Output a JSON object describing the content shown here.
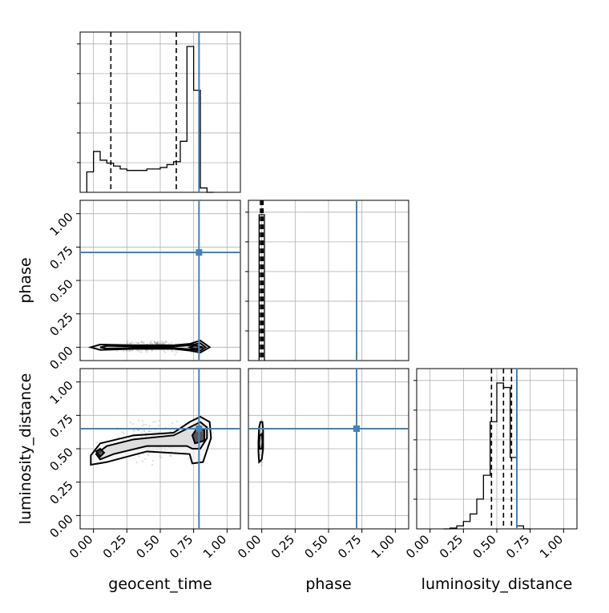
{
  "chart_data": {
    "type": "corner",
    "parameters": [
      "geocent_time",
      "phase",
      "luminosity_distance"
    ],
    "truths": [
      0.79,
      0.71,
      0.65
    ],
    "truth_color": "#4682b4",
    "range": [
      -0.1,
      1.1
    ],
    "tick_labels": [
      "0.00",
      "0.25",
      "0.50",
      "0.75",
      "1.00"
    ],
    "tick_values": [
      0.0,
      0.25,
      0.5,
      0.75,
      1.0
    ],
    "grid": true,
    "diagonal": [
      {
        "parameter": "geocent_time",
        "bin_edges": [
          -0.05,
          0.0,
          0.05,
          0.1,
          0.15,
          0.2,
          0.25,
          0.3,
          0.35,
          0.4,
          0.45,
          0.5,
          0.55,
          0.6,
          0.65,
          0.7,
          0.75,
          0.8,
          0.85,
          0.9
        ],
        "counts": [
          0.14,
          0.28,
          0.22,
          0.2,
          0.18,
          0.16,
          0.15,
          0.15,
          0.15,
          0.16,
          0.16,
          0.17,
          0.19,
          0.21,
          0.35,
          1.0,
          0.7,
          0.03,
          0.0
        ],
        "quantiles": [
          0.13,
          0.62,
          0.79
        ]
      },
      {
        "parameter": "phase",
        "bin_edges": [
          -0.02,
          0.0,
          0.02
        ],
        "counts": [
          1.0,
          1.0
        ],
        "quantiles": [
          -0.01,
          0.0,
          0.01
        ]
      },
      {
        "parameter": "luminosity_distance",
        "bin_edges": [
          0.1,
          0.15,
          0.2,
          0.25,
          0.3,
          0.35,
          0.4,
          0.45,
          0.5,
          0.55,
          0.6,
          0.65,
          0.7,
          0.75
        ],
        "counts": [
          0.0,
          0.005,
          0.02,
          0.05,
          0.1,
          0.2,
          0.36,
          0.72,
          0.98,
          0.95,
          0.48,
          0.02,
          0.0
        ],
        "quantiles": [
          0.46,
          0.55,
          0.61
        ]
      }
    ],
    "pairs": [
      {
        "x": "geocent_time",
        "y": "phase",
        "contours": [
          [
            [
              -0.02,
              0.0
            ],
            [
              0.05,
              0.02
            ],
            [
              0.3,
              0.015
            ],
            [
              0.6,
              0.015
            ],
            [
              0.72,
              0.025
            ],
            [
              0.8,
              0.05
            ],
            [
              0.87,
              0.0
            ],
            [
              0.8,
              -0.04
            ],
            [
              0.72,
              -0.025
            ],
            [
              0.6,
              -0.012
            ],
            [
              0.3,
              -0.012
            ],
            [
              0.05,
              -0.02
            ]
          ],
          [
            [
              0.05,
              0.0
            ],
            [
              0.1,
              0.01
            ],
            [
              0.3,
              0.006
            ],
            [
              0.6,
              0.006
            ],
            [
              0.72,
              0.015
            ],
            [
              0.8,
              0.03
            ],
            [
              0.84,
              0.0
            ],
            [
              0.8,
              -0.025
            ],
            [
              0.72,
              -0.015
            ],
            [
              0.6,
              -0.006
            ],
            [
              0.3,
              -0.006
            ],
            [
              0.1,
              -0.01
            ]
          ],
          [
            [
              0.72,
              0.0
            ],
            [
              0.76,
              0.015
            ],
            [
              0.82,
              0.0
            ],
            [
              0.76,
              -0.015
            ]
          ]
        ]
      },
      {
        "x": "geocent_time",
        "y": "luminosity_distance",
        "contours": [
          [
            [
              -0.02,
              0.45
            ],
            [
              0.05,
              0.54
            ],
            [
              0.3,
              0.6
            ],
            [
              0.6,
              0.62
            ],
            [
              0.72,
              0.7
            ],
            [
              0.8,
              0.74
            ],
            [
              0.87,
              0.7
            ],
            [
              0.88,
              0.58
            ],
            [
              0.82,
              0.4
            ],
            [
              0.74,
              0.39
            ],
            [
              0.72,
              0.46
            ],
            [
              0.4,
              0.48
            ],
            [
              0.1,
              0.4
            ],
            [
              -0.02,
              0.38
            ]
          ],
          [
            [
              0.02,
              0.46
            ],
            [
              0.1,
              0.52
            ],
            [
              0.3,
              0.57
            ],
            [
              0.6,
              0.6
            ],
            [
              0.72,
              0.66
            ],
            [
              0.8,
              0.7
            ],
            [
              0.85,
              0.66
            ],
            [
              0.85,
              0.58
            ],
            [
              0.8,
              0.5
            ],
            [
              0.74,
              0.5
            ],
            [
              0.7,
              0.52
            ],
            [
              0.4,
              0.52
            ],
            [
              0.15,
              0.46
            ],
            [
              0.05,
              0.42
            ]
          ],
          [
            [
              0.02,
              0.48
            ],
            [
              0.05,
              0.5
            ],
            [
              0.08,
              0.47
            ],
            [
              0.05,
              0.44
            ]
          ],
          [
            [
              0.74,
              0.6
            ],
            [
              0.78,
              0.66
            ],
            [
              0.83,
              0.64
            ],
            [
              0.83,
              0.56
            ],
            [
              0.76,
              0.54
            ]
          ]
        ]
      },
      {
        "x": "phase",
        "y": "luminosity_distance",
        "contours": [
          [
            [
              -0.025,
              0.55
            ],
            [
              -0.02,
              0.66
            ],
            [
              -0.01,
              0.7
            ],
            [
              0.005,
              0.7
            ],
            [
              0.01,
              0.64
            ],
            [
              0.01,
              0.5
            ],
            [
              0.0,
              0.42
            ],
            [
              -0.02,
              0.4
            ],
            [
              -0.025,
              0.48
            ]
          ],
          [
            [
              -0.02,
              0.54
            ],
            [
              -0.015,
              0.6
            ],
            [
              0.0,
              0.61
            ],
            [
              0.005,
              0.55
            ],
            [
              0.0,
              0.5
            ],
            [
              -0.015,
              0.5
            ]
          ]
        ]
      }
    ]
  }
}
